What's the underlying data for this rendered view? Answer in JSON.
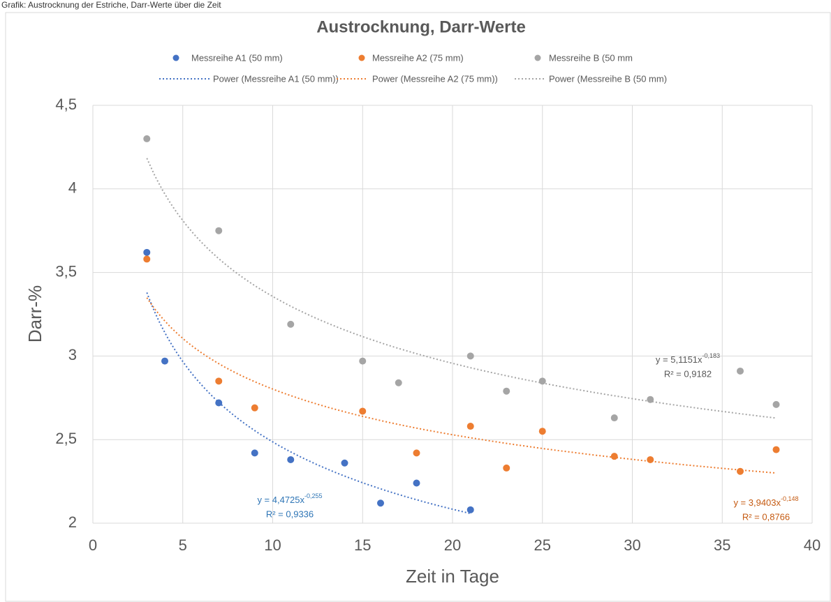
{
  "caption": "Grafik: Austrocknung der Estriche, Darr-Werte über die Zeit",
  "chart_data": {
    "type": "scatter",
    "title": "Austrocknung, Darr-Werte",
    "xlabel": "Zeit in Tage",
    "ylabel": "Darr-%",
    "xlim": [
      0,
      40
    ],
    "xticks": [
      0,
      5,
      10,
      15,
      20,
      25,
      30,
      35,
      40
    ],
    "ylim": [
      2,
      4.5
    ],
    "yticks": [
      2,
      {
        "value": 2.5,
        "label": "2,5"
      },
      3,
      {
        "value": 3.5,
        "label": "3,5"
      },
      4,
      {
        "value": 4.5,
        "label": "4,5"
      }
    ],
    "grid": true,
    "legend": "top",
    "series": [
      {
        "name": "Messreihe A1 (50 mm)",
        "color": "#4472c4",
        "x": [
          3,
          4,
          7,
          9,
          11,
          14,
          16,
          18,
          21
        ],
        "values": [
          3.62,
          2.97,
          2.72,
          2.42,
          2.38,
          2.36,
          2.12,
          2.24,
          2.08
        ],
        "trendline": {
          "name": "Power (Messreihe A1 (50 mm))",
          "a": 4.4725,
          "b": -0.255,
          "equation": "y = 4,4725x",
          "exponent": "-0,255",
          "r2": "R² = 0,9336",
          "color": "#2e75b6"
        }
      },
      {
        "name": "Messreihe A2 (75 mm)",
        "color": "#ed7d31",
        "x": [
          3,
          7,
          9,
          15,
          18,
          21,
          23,
          25,
          29,
          31,
          36,
          38
        ],
        "values": [
          3.58,
          2.85,
          2.69,
          2.67,
          2.42,
          2.58,
          2.33,
          2.55,
          2.4,
          2.38,
          2.31,
          2.44
        ],
        "trendline": {
          "name": "Power (Messreihe A2 (75 mm))",
          "a": 3.9403,
          "b": -0.148,
          "equation": "y = 3,9403x",
          "exponent": "-0,148",
          "r2": "R² = 0,8766",
          "color": "#c55a11"
        }
      },
      {
        "name": "Messreihe B (50 mm",
        "color": "#a5a5a5",
        "x": [
          3,
          7,
          11,
          15,
          17,
          21,
          23,
          25,
          29,
          31,
          36,
          38
        ],
        "values": [
          4.3,
          3.75,
          3.19,
          2.97,
          2.84,
          3.0,
          2.79,
          2.85,
          2.63,
          2.74,
          2.91,
          2.71
        ],
        "trendline": {
          "name": "Power (Messreihe B (50 mm)",
          "a": 5.1151,
          "b": -0.183,
          "equation": "y = 5,1151x",
          "exponent": "-0,183",
          "r2": "R² = 0,9182",
          "color": "#595959"
        }
      }
    ]
  }
}
